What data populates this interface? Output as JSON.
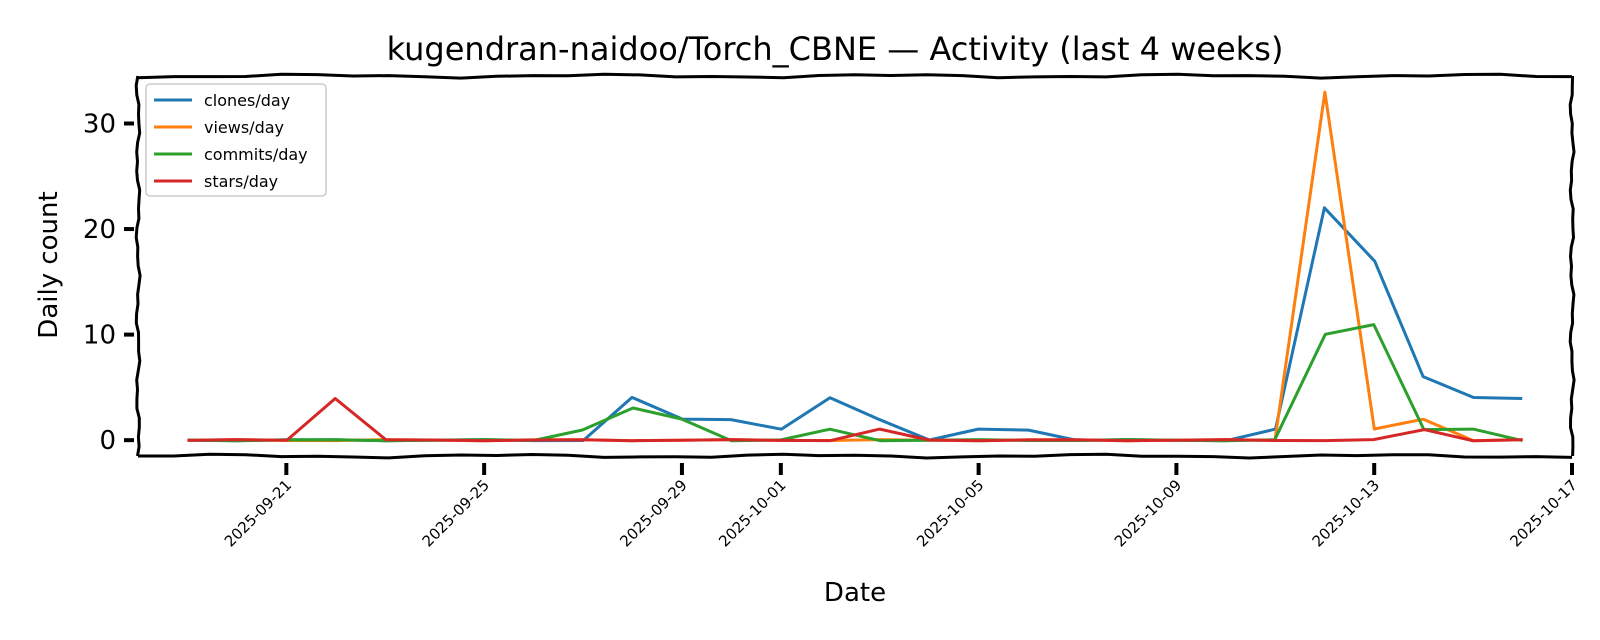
{
  "chart_data": {
    "type": "line",
    "title": "kugendran-naidoo/Torch_CBNE — Activity (last 4 weeks)",
    "xlabel": "Date",
    "ylabel": "Daily count",
    "x_type": "date",
    "xlim": [
      "2025-09-18",
      "2025-10-17"
    ],
    "ylim": [
      -1.5,
      34.5
    ],
    "yticks": [
      0,
      10,
      20,
      30
    ],
    "xticks": [
      "2025-09-21",
      "2025-09-25",
      "2025-09-29",
      "2025-10-01",
      "2025-10-05",
      "2025-10-09",
      "2025-10-13",
      "2025-10-17"
    ],
    "grid": false,
    "legend_position": "top-left",
    "x": [
      "2025-09-19",
      "2025-09-20",
      "2025-09-21",
      "2025-09-22",
      "2025-09-23",
      "2025-09-24",
      "2025-09-25",
      "2025-09-26",
      "2025-09-27",
      "2025-09-28",
      "2025-09-29",
      "2025-09-30",
      "2025-10-01",
      "2025-10-02",
      "2025-10-03",
      "2025-10-04",
      "2025-10-05",
      "2025-10-06",
      "2025-10-07",
      "2025-10-08",
      "2025-10-09",
      "2025-10-10",
      "2025-10-11",
      "2025-10-12",
      "2025-10-13",
      "2025-10-14",
      "2025-10-15",
      "2025-10-16"
    ],
    "series": [
      {
        "name": "clones/day",
        "color": "#1f77b4",
        "values": [
          0,
          0,
          0,
          0,
          0,
          0,
          0,
          0,
          0,
          4,
          2,
          2,
          1,
          4,
          2,
          0,
          1,
          1,
          0,
          0,
          0,
          0,
          1,
          22,
          17,
          6,
          4,
          4
        ]
      },
      {
        "name": "views/day",
        "color": "#ff7f0e",
        "values": [
          0,
          0,
          0,
          0,
          0,
          0,
          0,
          0,
          0,
          0,
          0,
          0,
          0,
          0,
          0,
          0,
          0,
          0,
          0,
          0,
          0,
          0,
          0,
          33,
          1,
          2,
          0,
          0
        ]
      },
      {
        "name": "commits/day",
        "color": "#2ca02c",
        "values": [
          0,
          0,
          0,
          0,
          0,
          0,
          0,
          0,
          1,
          3,
          2,
          0,
          0,
          1,
          0,
          0,
          0,
          0,
          0,
          0,
          0,
          0,
          0,
          10,
          11,
          1,
          1,
          0
        ]
      },
      {
        "name": "stars/day",
        "color": "#d62728",
        "values": [
          0,
          0,
          0,
          4,
          0,
          0,
          0,
          0,
          0,
          0,
          0,
          0,
          0,
          0,
          1,
          0,
          0,
          0,
          0,
          0,
          0,
          0,
          0,
          0,
          0,
          1,
          0,
          0
        ]
      }
    ]
  }
}
